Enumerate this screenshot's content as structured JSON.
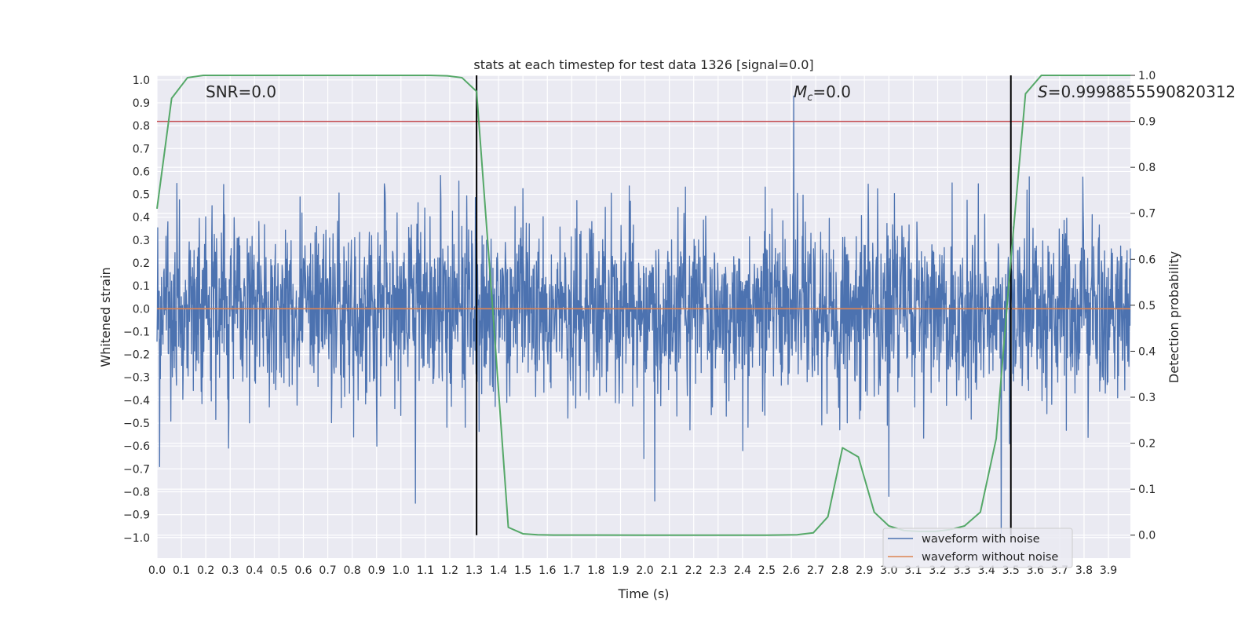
{
  "chart_data": {
    "type": "line",
    "title": "stats at each timestep for test data 1326 [signal=0.0]",
    "xlabel": "Time (s)",
    "ylabel": "Whitened strain",
    "y2label": "Detection probability",
    "xlim": [
      0.0,
      3.99
    ],
    "ylim": [
      -1.09,
      1.02
    ],
    "y2lim": [
      -0.05,
      1.0
    ],
    "xticks": [
      "0.0",
      "0.1",
      "0.2",
      "0.3",
      "0.4",
      "0.5",
      "0.6",
      "0.7",
      "0.8",
      "0.9",
      "1.0",
      "1.1",
      "1.2",
      "1.3",
      "1.4",
      "1.5",
      "1.6",
      "1.7",
      "1.8",
      "1.9",
      "2.0",
      "2.1",
      "2.2",
      "2.3",
      "2.4",
      "2.5",
      "2.6",
      "2.7",
      "2.8",
      "2.9",
      "3.0",
      "3.1",
      "3.2",
      "3.3",
      "3.4",
      "3.5",
      "3.6",
      "3.7",
      "3.8",
      "3.9"
    ],
    "yticks": [
      "1.0",
      "0.9",
      "0.8",
      "0.7",
      "0.6",
      "0.5",
      "0.4",
      "0.3",
      "0.2",
      "0.1",
      "0.0",
      "−0.1",
      "−0.2",
      "−0.3",
      "−0.4",
      "−0.5",
      "−0.6",
      "−0.7",
      "−0.8",
      "−0.9",
      "−1.0"
    ],
    "y2ticks": [
      "1.0",
      "0.9",
      "0.8",
      "0.7",
      "0.6",
      "0.5",
      "0.4",
      "0.3",
      "0.2",
      "0.1",
      "0.0"
    ],
    "grid": true,
    "legend_position": "lower-right",
    "annotations": {
      "snr": "SNR=0.0",
      "mc_prefix": "M",
      "mc_sub": "c",
      "mc_value": "=0.0",
      "s_prefix": "S",
      "s_value": "=0.9998855590820312"
    },
    "series": [
      {
        "name": "waveform with noise",
        "color": "#4c72b0",
        "description_of_data": "dense whitened-noise strain; typical range about ±0.4 with occasional peaks",
        "notable_points": [
          {
            "x": 2.61,
            "y": 0.93
          },
          {
            "x": 1.06,
            "y": -0.85
          },
          {
            "x": 2.04,
            "y": -0.84
          },
          {
            "x": 3.46,
            "y": -1.0
          },
          {
            "x": 0.01,
            "y": -0.69
          },
          {
            "x": 3.0,
            "y": -0.82
          }
        ]
      },
      {
        "name": "waveform without noise",
        "color": "#dd8452",
        "x": [
          0.0,
          3.99
        ],
        "y": [
          0.0,
          0.0
        ]
      },
      {
        "name": "detection probability",
        "axis": "right",
        "color": "#55a868",
        "x": [
          0.0,
          0.06,
          0.125,
          0.19,
          0.25,
          0.5,
          0.75,
          1.0,
          1.12,
          1.19,
          1.25,
          1.31,
          1.375,
          1.44,
          1.5,
          1.56,
          1.625,
          2.0,
          2.5,
          2.625,
          2.69,
          2.75,
          2.81,
          2.875,
          2.94,
          3.0,
          3.0625,
          3.125,
          3.19,
          3.25,
          3.31,
          3.375,
          3.44,
          3.5,
          3.56,
          3.625,
          3.69,
          3.75,
          3.81,
          3.875,
          3.99
        ],
        "y": [
          0.71,
          0.95,
          0.995,
          1.0,
          1.0,
          1.0,
          1.0,
          1.0,
          1.0,
          0.999,
          0.995,
          0.965,
          0.5,
          0.017,
          0.003,
          0.0009,
          0.0002,
          0.0,
          0.0,
          0.0009,
          0.005,
          0.04,
          0.19,
          0.17,
          0.05,
          0.02,
          0.01,
          0.008,
          0.008,
          0.012,
          0.02,
          0.05,
          0.21,
          0.6,
          0.96,
          1.0,
          1.0,
          1.0,
          1.0,
          1.0,
          1.0
        ]
      }
    ],
    "reference_lines": [
      {
        "orientation": "horizontal",
        "axis": "right",
        "value": 0.9,
        "color": "#c44e52"
      },
      {
        "orientation": "vertical",
        "value": 1.31,
        "color": "#000000"
      },
      {
        "orientation": "vertical",
        "value": 3.5,
        "color": "#000000"
      }
    ],
    "noise_seed": 1326
  }
}
